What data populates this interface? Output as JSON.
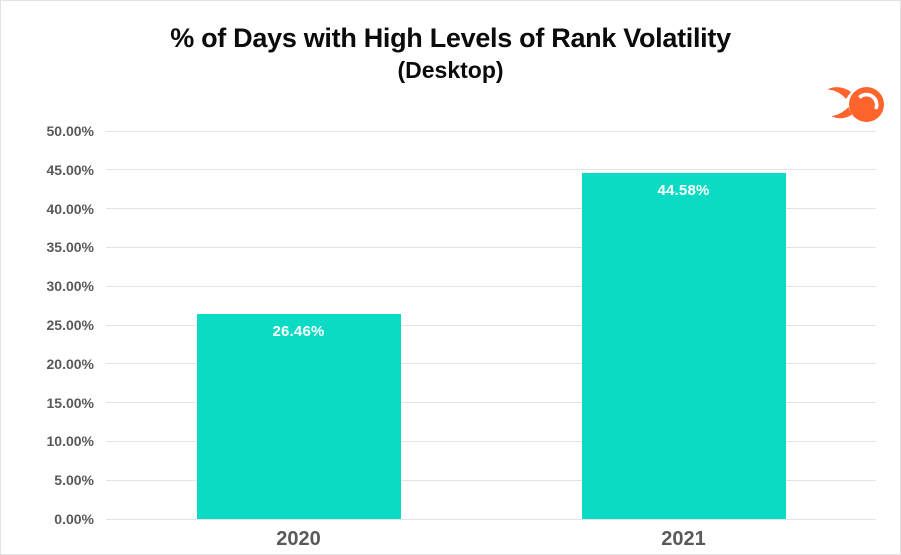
{
  "header": {
    "title": "% of Days with High Levels of Rank Volatility",
    "subtitle": "(Desktop)",
    "logo_name": "semrush-logo"
  },
  "colors": {
    "bar_fill": "#0BDAC4",
    "gridline": "#E4E4E4",
    "axis_text": "#595959",
    "title_text": "#0B0B0B",
    "bar_value_text": "#FFFFFF",
    "logo_orange": "#FF642D",
    "frame_border": "#E2E2E2"
  },
  "chart_data": {
    "type": "bar",
    "title": "% of Days with High Levels of Rank Volatility",
    "subtitle": "(Desktop)",
    "categories": [
      "2020",
      "2021"
    ],
    "values": [
      26.46,
      44.58
    ],
    "value_labels": [
      "26.46%",
      "44.58%"
    ],
    "xlabel": "",
    "ylabel": "",
    "ylim": [
      0,
      50
    ],
    "ytick_step": 5,
    "ytick_labels": [
      "0.00%",
      "5.00%",
      "10.00%",
      "15.00%",
      "20.00%",
      "25.00%",
      "30.00%",
      "35.00%",
      "40.00%",
      "45.00%",
      "50.00%"
    ],
    "grid": true,
    "legend": false
  }
}
